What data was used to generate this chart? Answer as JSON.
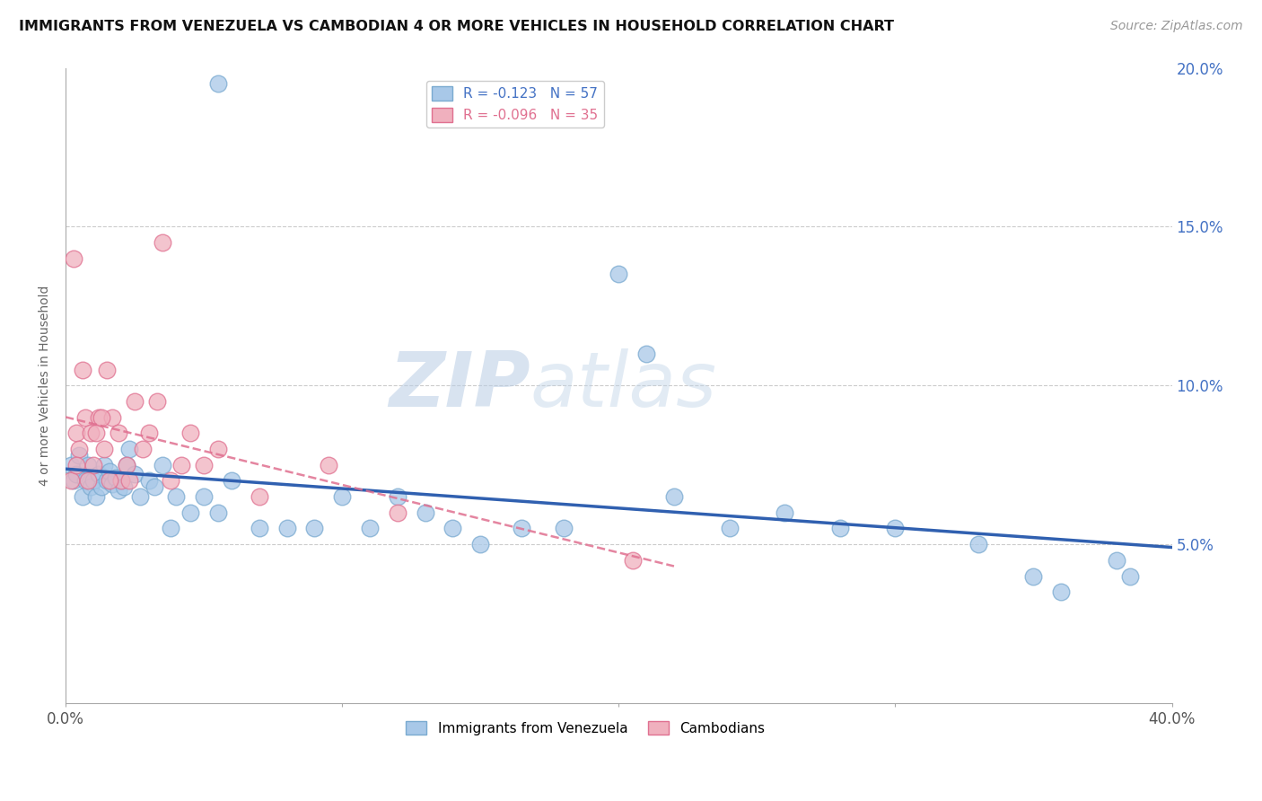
{
  "title": "IMMIGRANTS FROM VENEZUELA VS CAMBODIAN 4 OR MORE VEHICLES IN HOUSEHOLD CORRELATION CHART",
  "source_text": "Source: ZipAtlas.com",
  "ylabel": "4 or more Vehicles in Household",
  "legend_entry1": "R = -0.123   N = 57",
  "legend_entry2": "R = -0.096   N = 35",
  "legend_label1": "Immigrants from Venezuela",
  "legend_label2": "Cambodians",
  "xlim": [
    0.0,
    40.0
  ],
  "ylim": [
    0.0,
    20.0
  ],
  "x_ticks_show": [
    0.0,
    40.0
  ],
  "y_ticks_right": [
    5.0,
    10.0,
    15.0,
    20.0
  ],
  "color_blue": "#a8c8e8",
  "color_pink": "#f0b0be",
  "color_blue_edge": "#7aaad0",
  "color_pink_edge": "#e07090",
  "color_blue_line": "#3060b0",
  "color_pink_line": "#e07090",
  "watermark_zip": "#b8cce4",
  "watermark_atlas": "#c8d8e8",
  "blue_scatter_x": [
    0.2,
    0.3,
    0.4,
    0.5,
    0.6,
    0.7,
    0.8,
    0.9,
    1.0,
    1.1,
    1.2,
    1.3,
    1.4,
    1.5,
    1.6,
    1.7,
    1.8,
    1.9,
    2.0,
    2.1,
    2.2,
    2.3,
    2.5,
    2.7,
    3.0,
    3.2,
    3.5,
    4.0,
    4.5,
    5.0,
    5.5,
    6.0,
    7.0,
    8.0,
    9.0,
    10.0,
    11.0,
    12.0,
    13.0,
    14.0,
    15.0,
    16.5,
    18.0,
    20.0,
    22.0,
    24.0,
    26.0,
    28.0,
    30.0,
    33.0,
    35.0,
    36.0,
    38.0,
    5.5,
    3.8,
    21.0,
    38.5
  ],
  "blue_scatter_y": [
    7.5,
    7.0,
    7.2,
    7.8,
    6.5,
    7.0,
    7.5,
    6.8,
    7.0,
    6.5,
    7.2,
    6.8,
    7.5,
    7.0,
    7.3,
    6.9,
    7.1,
    6.7,
    7.0,
    6.8,
    7.5,
    8.0,
    7.2,
    6.5,
    7.0,
    6.8,
    7.5,
    6.5,
    6.0,
    6.5,
    6.0,
    7.0,
    5.5,
    5.5,
    5.5,
    6.5,
    5.5,
    6.5,
    6.0,
    5.5,
    5.0,
    5.5,
    5.5,
    13.5,
    6.5,
    5.5,
    6.0,
    5.5,
    5.5,
    5.0,
    4.0,
    3.5,
    4.5,
    19.5,
    5.5,
    11.0,
    4.0
  ],
  "pink_scatter_x": [
    0.2,
    0.4,
    0.5,
    0.7,
    0.9,
    1.0,
    1.2,
    1.4,
    1.5,
    1.7,
    1.9,
    2.0,
    2.2,
    2.5,
    2.8,
    3.0,
    3.3,
    3.8,
    4.2,
    5.0,
    5.5,
    7.0,
    9.5,
    0.3,
    0.6,
    1.1,
    1.6,
    2.3,
    3.5,
    4.5,
    12.0,
    20.5,
    0.8,
    1.3,
    0.4
  ],
  "pink_scatter_y": [
    7.0,
    8.5,
    8.0,
    9.0,
    8.5,
    7.5,
    9.0,
    8.0,
    10.5,
    9.0,
    8.5,
    7.0,
    7.5,
    9.5,
    8.0,
    8.5,
    9.5,
    7.0,
    7.5,
    7.5,
    8.0,
    6.5,
    7.5,
    14.0,
    10.5,
    8.5,
    7.0,
    7.0,
    14.5,
    8.5,
    6.0,
    4.5,
    7.0,
    9.0,
    7.5
  ]
}
